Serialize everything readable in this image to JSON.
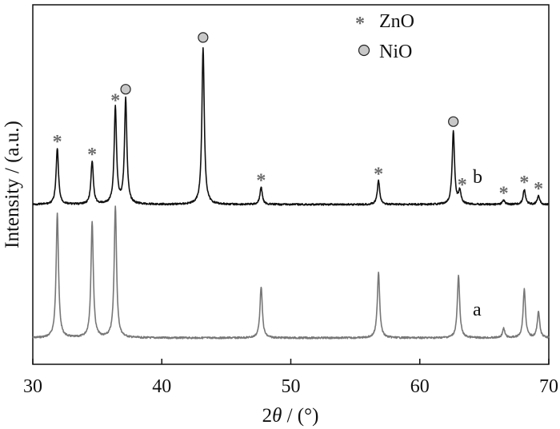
{
  "chart_data": {
    "type": "line",
    "xlabel_prefix": "2",
    "xlabel_symbol": "θ",
    "xlabel_suffix": " / (°)",
    "ylabel": "Intensity / (a.u.)",
    "xlim": [
      30,
      70
    ],
    "x_ticks": [
      "30",
      "40",
      "50",
      "60",
      "70"
    ],
    "grid": false,
    "legend": [
      {
        "name": "ZnO",
        "marker": "asterisk",
        "glyph": "*",
        "color": "#6b6b6b"
      },
      {
        "name": "NiO",
        "marker": "circle",
        "color": "#c8c8c8"
      }
    ],
    "series": [
      {
        "name": "a",
        "color": "#777777",
        "peaks": [
          {
            "x": 31.9,
            "height": 0.95
          },
          {
            "x": 34.6,
            "height": 0.88
          },
          {
            "x": 36.4,
            "height": 1.0
          },
          {
            "x": 47.7,
            "height": 0.39
          },
          {
            "x": 56.8,
            "height": 0.5
          },
          {
            "x": 63.0,
            "height": 0.47
          },
          {
            "x": 66.5,
            "height": 0.07
          },
          {
            "x": 68.1,
            "height": 0.37
          },
          {
            "x": 69.2,
            "height": 0.2
          }
        ]
      },
      {
        "name": "b",
        "color": "#111111",
        "peaks": [
          {
            "x": 31.9,
            "height": 0.26,
            "marker": "asterisk"
          },
          {
            "x": 34.6,
            "height": 0.2,
            "marker": "asterisk"
          },
          {
            "x": 36.4,
            "height": 0.45,
            "marker": "asterisk"
          },
          {
            "x": 37.2,
            "height": 0.49,
            "marker": "circle"
          },
          {
            "x": 43.2,
            "height": 0.73,
            "marker": "circle"
          },
          {
            "x": 47.7,
            "height": 0.08,
            "marker": "asterisk"
          },
          {
            "x": 56.8,
            "height": 0.11,
            "marker": "asterisk"
          },
          {
            "x": 62.6,
            "height": 0.34,
            "marker": "circle"
          },
          {
            "x": 63.1,
            "height": 0.06,
            "marker": "asterisk"
          },
          {
            "x": 66.5,
            "height": 0.02,
            "marker": "asterisk"
          },
          {
            "x": 68.1,
            "height": 0.07,
            "marker": "asterisk"
          },
          {
            "x": 69.2,
            "height": 0.04,
            "marker": "asterisk"
          }
        ]
      }
    ]
  }
}
